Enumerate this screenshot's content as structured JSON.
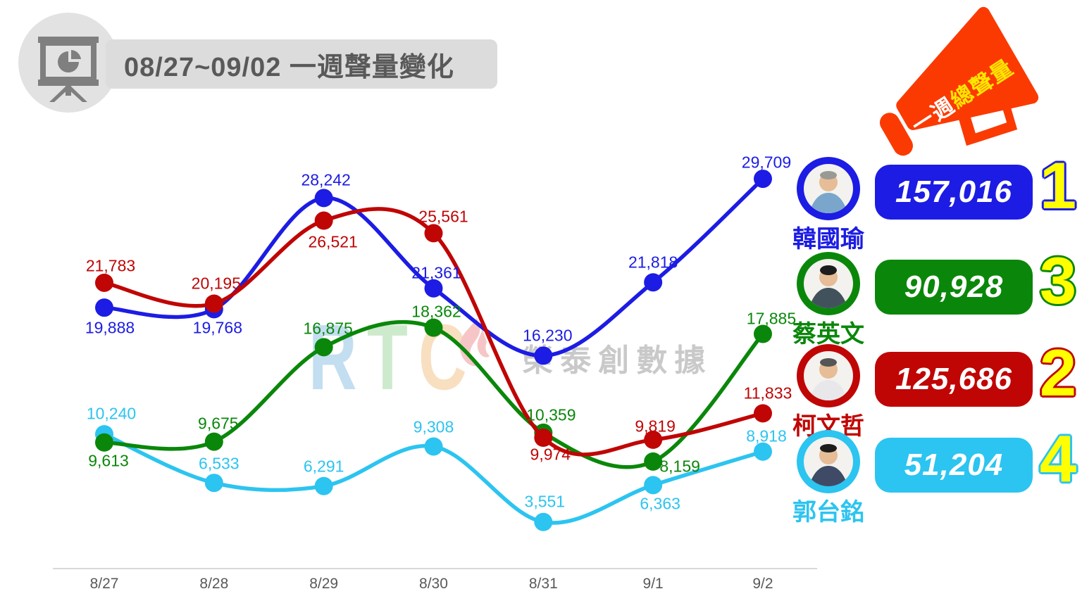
{
  "header": {
    "title": "08/27~09/02 一週聲量變化",
    "icon": "presentation-chart-icon",
    "banner_color": "#dcdcdc",
    "title_color": "#595959"
  },
  "megaphone": {
    "label_prefix": "一週",
    "label_suffix": "總聲量",
    "body_color": "#fb3a02",
    "prefix_color": "#ffffff",
    "suffix_color": "#ffe600"
  },
  "watermark": {
    "letters": [
      {
        "ch": "R",
        "color": "#c3def0"
      },
      {
        "ch": "T",
        "color": "#cdeacd"
      },
      {
        "ch": "C",
        "color": "#f8dfc0"
      }
    ],
    "flame_color": "#f6c6c6",
    "text": "榮泰創數據",
    "text_color": "#c9c9c9"
  },
  "ranking": {
    "rank_color": "#ffff00",
    "rows": [
      {
        "name": "韓國瑜",
        "total": "157,016",
        "rank": "1",
        "color": "#1c1ce4"
      },
      {
        "name": "蔡英文",
        "total": "90,928",
        "rank": "3",
        "color": "#0a870a"
      },
      {
        "name": "柯文哲",
        "total": "125,686",
        "rank": "2",
        "color": "#c00505"
      },
      {
        "name": "郭台銘",
        "total": "51,204",
        "rank": "4",
        "color": "#2cc4f0"
      }
    ]
  },
  "chart_data": {
    "type": "line",
    "title": "08/27~09/02 一週聲量變化",
    "categories": [
      "8/27",
      "8/28",
      "8/29",
      "8/30",
      "8/31",
      "9/1",
      "9/2"
    ],
    "series": [
      {
        "name": "郭台銘",
        "color": "#2cc4f0",
        "total": 51204,
        "values": [
          10240,
          6533,
          6291,
          9308,
          3551,
          6363,
          8918
        ],
        "label_offsets": [
          [
            10,
            -29
          ],
          [
            7,
            -27
          ],
          [
            0,
            -28
          ],
          [
            0,
            -27
          ],
          [
            2,
            -29
          ],
          [
            10,
            27
          ],
          [
            5,
            -22
          ]
        ]
      },
      {
        "name": "蔡英文",
        "color": "#0a870a",
        "total": 90928,
        "values": [
          9613,
          9675,
          16875,
          18362,
          10359,
          8159,
          17885
        ],
        "label_offsets": [
          [
            6,
            26
          ],
          [
            6,
            -26
          ],
          [
            6,
            -26
          ],
          [
            4,
            -23
          ],
          [
            11,
            -25
          ],
          [
            38,
            7
          ],
          [
            12,
            -22
          ]
        ]
      },
      {
        "name": "韓國瑜",
        "color": "#1c1ce4",
        "total": 157016,
        "values": [
          19888,
          19768,
          28242,
          21361,
          16230,
          21818,
          29709
        ],
        "label_offsets": [
          [
            8,
            29
          ],
          [
            5,
            27
          ],
          [
            3,
            -25
          ],
          [
            4,
            -22
          ],
          [
            6,
            -28
          ],
          [
            0,
            -28
          ],
          [
            5,
            -23
          ]
        ]
      },
      {
        "name": "柯文哲",
        "color": "#c00505",
        "total": 125686,
        "values": [
          21783,
          20195,
          26521,
          25561,
          9974,
          9819,
          11833
        ],
        "label_offsets": [
          [
            9,
            -24
          ],
          [
            3,
            -28
          ],
          [
            13,
            30
          ],
          [
            14,
            -23
          ],
          [
            10,
            24
          ],
          [
            3,
            -19
          ],
          [
            7,
            -28
          ]
        ]
      }
    ],
    "xlabel": "",
    "ylabel": "",
    "ylim": [
      0,
      31000
    ],
    "grid": false,
    "legend_position": "right-panel",
    "axis_color": "#d8d8d8",
    "tick_color": "#595959",
    "line_smoothing": "spline"
  }
}
